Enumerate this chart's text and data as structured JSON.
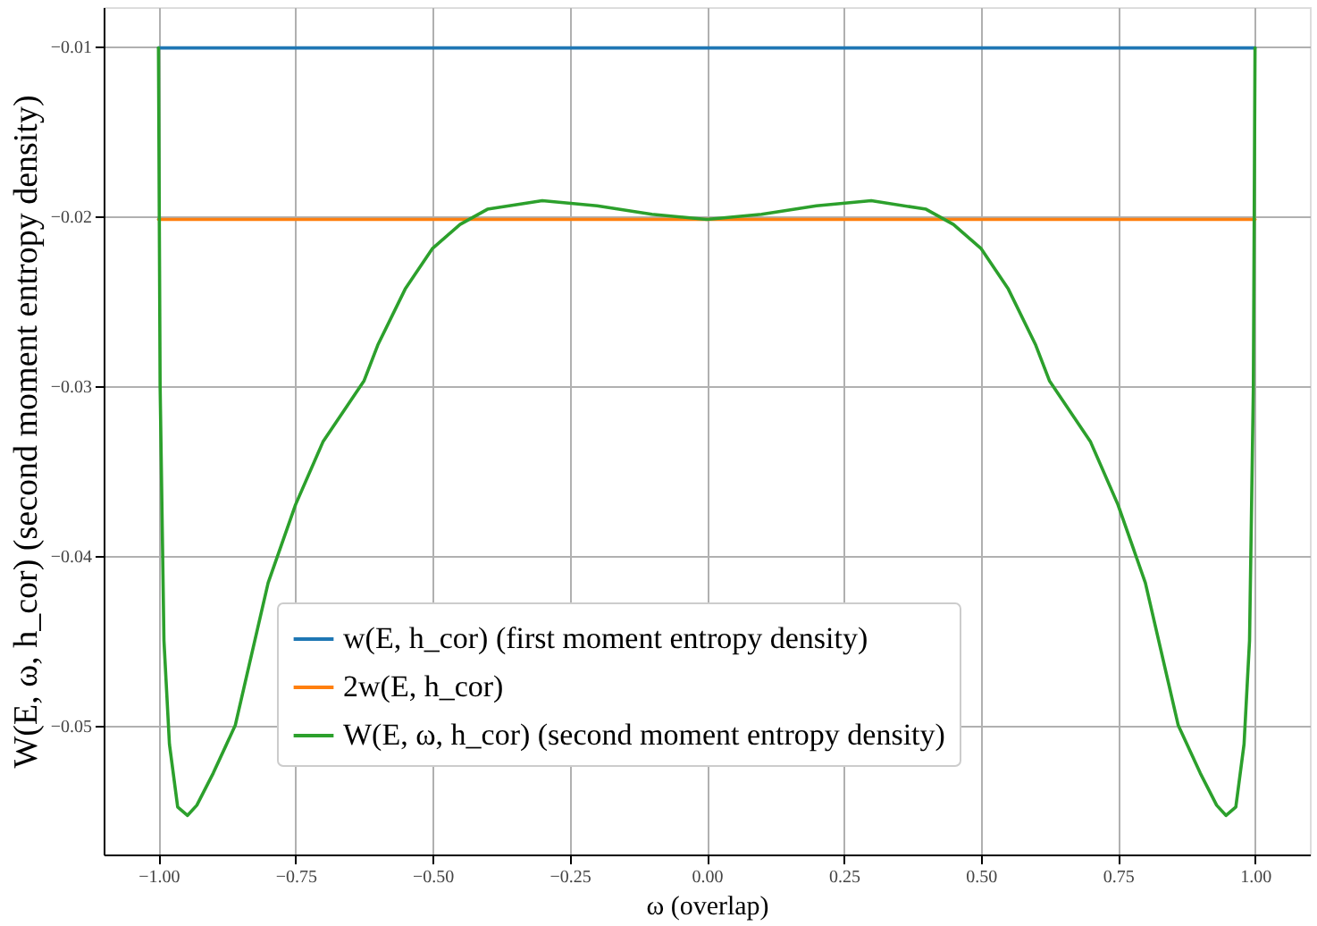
{
  "chart_data": {
    "type": "line",
    "xlabel": "ω (overlap)",
    "ylabel": "W(E, ω, h_cor) (second moment entropy density)",
    "xlim": [
      -1.1,
      1.1
    ],
    "ylim": [
      -0.0576,
      -0.0077
    ],
    "xticks": [
      {
        "value": -1,
        "label": "−1.00"
      },
      {
        "value": -0.75,
        "label": "−0.75"
      },
      {
        "value": -0.5,
        "label": "−0.50"
      },
      {
        "value": -0.25,
        "label": "−0.25"
      },
      {
        "value": 0,
        "label": "0.00"
      },
      {
        "value": 0.25,
        "label": "0.25"
      },
      {
        "value": 0.5,
        "label": "0.50"
      },
      {
        "value": 0.75,
        "label": "0.75"
      },
      {
        "value": 1,
        "label": "1.00"
      }
    ],
    "yticks": [
      {
        "value": -0.05,
        "label": "−0.05"
      },
      {
        "value": -0.04,
        "label": "−0.04"
      },
      {
        "value": -0.03,
        "label": "−0.03"
      },
      {
        "value": -0.02,
        "label": "−0.02"
      },
      {
        "value": -0.01,
        "label": "−0.01"
      }
    ],
    "grid": true,
    "legend": "bottom",
    "series": [
      {
        "name": "w(E, h_cor) (first moment entropy density)",
        "color": "#1f77b4",
        "x": [
          -1,
          1
        ],
        "values": [
          -0.0101,
          -0.0101
        ]
      },
      {
        "name": "2w(E, h_cor)",
        "color": "#ff7f0e",
        "x": [
          -1,
          1
        ],
        "values": [
          -0.0202,
          -0.0202
        ]
      },
      {
        "name": "W(E, ω, h_cor) (second moment entropy density)",
        "color": "#2ca02c",
        "x": [
          -1,
          -0.997,
          -0.99,
          -0.98,
          -0.965,
          -0.947,
          -0.93,
          -0.9,
          -0.86,
          -0.8,
          -0.75,
          -0.7,
          -0.625,
          -0.6,
          -0.55,
          -0.5,
          -0.45,
          -0.4,
          -0.3,
          -0.2,
          -0.1,
          0,
          0.1,
          0.2,
          0.3,
          0.4,
          0.45,
          0.5,
          0.55,
          0.6,
          0.625,
          0.7,
          0.75,
          0.8,
          0.86,
          0.9,
          0.93,
          0.947,
          0.965,
          0.98,
          0.99,
          0.997,
          1
        ],
        "values": [
          -0.0101,
          -0.03,
          -0.045,
          -0.0511,
          -0.0548,
          -0.0553,
          -0.0547,
          -0.0528,
          -0.05,
          -0.0416,
          -0.037,
          -0.0333,
          -0.0297,
          -0.0276,
          -0.0243,
          -0.0219,
          -0.0205,
          -0.0196,
          -0.0191,
          -0.0194,
          -0.0199,
          -0.0202,
          -0.0199,
          -0.0194,
          -0.0191,
          -0.0196,
          -0.0205,
          -0.0219,
          -0.0243,
          -0.0276,
          -0.0297,
          -0.0333,
          -0.037,
          -0.0416,
          -0.05,
          -0.0528,
          -0.0547,
          -0.0553,
          -0.0548,
          -0.0511,
          -0.045,
          -0.03,
          -0.0101
        ]
      }
    ]
  }
}
